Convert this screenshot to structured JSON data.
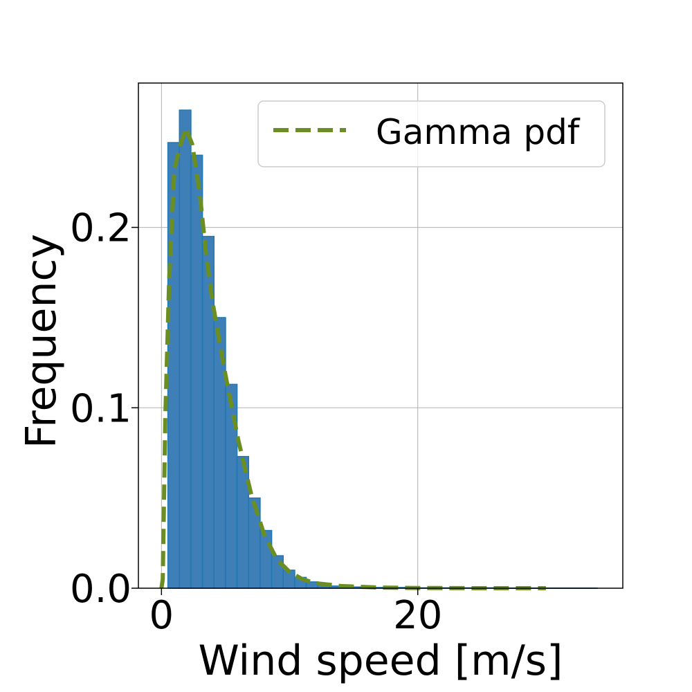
{
  "chart_data": {
    "type": "bar",
    "title": "",
    "xlabel": "Wind speed [m/s]",
    "ylabel": "Frequency",
    "xlim": [
      -1.8,
      36.0
    ],
    "ylim": [
      0.0,
      0.28
    ],
    "xticks": [
      0,
      20
    ],
    "xtick_labels": [
      "0",
      "20"
    ],
    "yticks": [
      0.0,
      0.1,
      0.2
    ],
    "ytick_labels": [
      "0.0",
      "0.1",
      "0.2"
    ],
    "grid": true,
    "legend": {
      "position": "top-right",
      "entries": [
        {
          "label": "Gamma pdf"
        }
      ]
    },
    "colors": {
      "histogram_fill": "#3f7fb7",
      "histogram_edge": "#1f77b4",
      "pdf_line": "#6b8e23"
    },
    "histogram": {
      "name": "",
      "bins": [
        {
          "x0": 0.5,
          "x1": 1.4,
          "y": 0.247
        },
        {
          "x0": 1.4,
          "x1": 2.3,
          "y": 0.265
        },
        {
          "x0": 2.3,
          "x1": 3.2,
          "y": 0.24
        },
        {
          "x0": 3.2,
          "x1": 4.1,
          "y": 0.195
        },
        {
          "x0": 4.1,
          "x1": 5.0,
          "y": 0.15
        },
        {
          "x0": 5.0,
          "x1": 5.9,
          "y": 0.113
        },
        {
          "x0": 5.9,
          "x1": 6.8,
          "y": 0.073
        },
        {
          "x0": 6.8,
          "x1": 7.7,
          "y": 0.05
        },
        {
          "x0": 7.7,
          "x1": 8.6,
          "y": 0.032
        },
        {
          "x0": 8.6,
          "x1": 9.5,
          "y": 0.018
        },
        {
          "x0": 9.5,
          "x1": 10.4,
          "y": 0.01
        },
        {
          "x0": 10.4,
          "x1": 11.3,
          "y": 0.006
        },
        {
          "x0": 11.3,
          "x1": 12.2,
          "y": 0.0035
        },
        {
          "x0": 12.2,
          "x1": 13.1,
          "y": 0.002
        },
        {
          "x0": 13.1,
          "x1": 14.0,
          "y": 0.0012
        },
        {
          "x0": 14.0,
          "x1": 16.0,
          "y": 0.0007
        },
        {
          "x0": 16.0,
          "x1": 20.0,
          "y": 0.0004
        },
        {
          "x0": 20.0,
          "x1": 26.0,
          "y": 0.0002
        },
        {
          "x0": 26.0,
          "x1": 34.0,
          "y": 0.0001
        }
      ]
    },
    "series": [
      {
        "name": "Gamma pdf",
        "type": "line",
        "style": "dashed",
        "x": [
          0.0,
          0.1,
          0.3,
          0.6,
          1.0,
          1.5,
          1.9,
          2.4,
          3.0,
          3.5,
          4.0,
          5.0,
          6.0,
          7.0,
          8.0,
          9.0,
          10.0,
          11.0,
          12.0,
          14.0,
          17.0,
          20.0,
          25.0,
          30.0
        ],
        "y": [
          0.0,
          0.005,
          0.095,
          0.17,
          0.232,
          0.246,
          0.255,
          0.246,
          0.218,
          0.184,
          0.158,
          0.118,
          0.082,
          0.052,
          0.03,
          0.016,
          0.009,
          0.005,
          0.0028,
          0.0012,
          0.0004,
          0.0001,
          0.0,
          0.0
        ]
      }
    ]
  }
}
